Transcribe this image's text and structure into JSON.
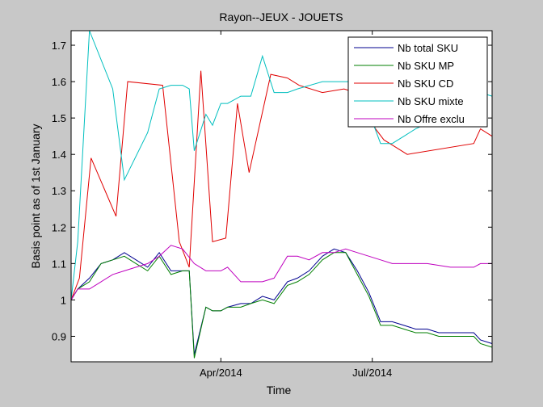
{
  "chart_data": {
    "type": "line",
    "title": "Rayon--JEUX - JOUETS",
    "xlabel": "Time",
    "ylabel": "Basis point as of 1st January",
    "x_axis": {
      "type": "date",
      "range": [
        "2014-01-01",
        "2014-09-11"
      ],
      "ticks": [
        {
          "date": "2014-04-01",
          "label": "Apr/2014"
        },
        {
          "date": "2014-07-01",
          "label": "Jul/2014"
        }
      ]
    },
    "ylim": [
      0.83,
      1.74
    ],
    "yticks": [
      {
        "value": 0.9,
        "label": "0.9"
      },
      {
        "value": 1.0,
        "label": "1"
      },
      {
        "value": 1.1,
        "label": "1.1"
      },
      {
        "value": 1.2,
        "label": "1.2"
      },
      {
        "value": 1.3,
        "label": "1.3"
      },
      {
        "value": 1.4,
        "label": "1.4"
      },
      {
        "value": 1.5,
        "label": "1.5"
      },
      {
        "value": 1.6,
        "label": "1.6"
      },
      {
        "value": 1.7,
        "label": "1.7"
      }
    ],
    "grid": false,
    "legend_position": "top-right",
    "series": [
      {
        "name": "Nb total SKU",
        "color": "#00008f",
        "x": [
          "2014-01-01",
          "2014-01-05",
          "2014-01-12",
          "2014-01-19",
          "2014-01-26",
          "2014-02-02",
          "2014-02-09",
          "2014-02-16",
          "2014-02-23",
          "2014-03-02",
          "2014-03-09",
          "2014-03-13",
          "2014-03-16",
          "2014-03-23",
          "2014-03-27",
          "2014-04-01",
          "2014-04-05",
          "2014-04-13",
          "2014-04-19",
          "2014-04-26",
          "2014-05-03",
          "2014-05-11",
          "2014-05-17",
          "2014-05-24",
          "2014-05-28",
          "2014-06-01",
          "2014-06-08",
          "2014-06-15",
          "2014-06-22",
          "2014-06-29",
          "2014-07-06",
          "2014-07-13",
          "2014-07-20",
          "2014-07-27",
          "2014-08-03",
          "2014-08-10",
          "2014-08-17",
          "2014-08-24",
          "2014-08-31",
          "2014-09-04",
          "2014-09-11"
        ],
        "y": [
          1.0,
          1.03,
          1.06,
          1.1,
          1.11,
          1.13,
          1.11,
          1.09,
          1.13,
          1.08,
          1.08,
          1.08,
          0.85,
          0.98,
          0.97,
          0.97,
          0.98,
          0.99,
          0.99,
          1.01,
          1.0,
          1.05,
          1.06,
          1.08,
          1.1,
          1.12,
          1.14,
          1.13,
          1.08,
          1.02,
          0.94,
          0.94,
          0.93,
          0.92,
          0.92,
          0.91,
          0.91,
          0.91,
          0.91,
          0.89,
          0.88
        ]
      },
      {
        "name": "Nb SKU MP",
        "color": "#007f00",
        "x": [
          "2014-01-01",
          "2014-01-05",
          "2014-01-12",
          "2014-01-19",
          "2014-01-26",
          "2014-02-02",
          "2014-02-09",
          "2014-02-16",
          "2014-02-23",
          "2014-03-02",
          "2014-03-09",
          "2014-03-13",
          "2014-03-16",
          "2014-03-23",
          "2014-03-27",
          "2014-04-01",
          "2014-04-05",
          "2014-04-13",
          "2014-04-19",
          "2014-04-26",
          "2014-05-03",
          "2014-05-11",
          "2014-05-17",
          "2014-05-24",
          "2014-05-28",
          "2014-06-01",
          "2014-06-08",
          "2014-06-15",
          "2014-06-22",
          "2014-06-29",
          "2014-07-06",
          "2014-07-13",
          "2014-07-20",
          "2014-07-27",
          "2014-08-03",
          "2014-08-10",
          "2014-08-17",
          "2014-08-24",
          "2014-08-31",
          "2014-09-04",
          "2014-09-11"
        ],
        "y": [
          1.0,
          1.03,
          1.05,
          1.1,
          1.11,
          1.12,
          1.1,
          1.08,
          1.12,
          1.07,
          1.08,
          1.08,
          0.84,
          0.98,
          0.97,
          0.97,
          0.98,
          0.98,
          0.99,
          1.0,
          0.99,
          1.04,
          1.05,
          1.07,
          1.09,
          1.11,
          1.13,
          1.13,
          1.07,
          1.01,
          0.93,
          0.93,
          0.92,
          0.91,
          0.91,
          0.9,
          0.9,
          0.9,
          0.9,
          0.88,
          0.87
        ]
      },
      {
        "name": "Nb SKU CD",
        "color": "#e00000",
        "x": [
          "2014-01-01",
          "2014-01-06",
          "2014-01-13",
          "2014-01-28",
          "2014-02-04",
          "2014-02-25",
          "2014-03-07",
          "2014-03-13",
          "2014-03-20",
          "2014-03-27",
          "2014-04-04",
          "2014-04-11",
          "2014-04-18",
          "2014-05-01",
          "2014-05-11",
          "2014-05-18",
          "2014-06-01",
          "2014-06-14",
          "2014-06-21",
          "2014-07-03",
          "2014-07-08",
          "2014-07-15",
          "2014-07-22",
          "2014-08-31",
          "2014-09-04",
          "2014-09-11"
        ],
        "y": [
          1.0,
          1.06,
          1.39,
          1.23,
          1.6,
          1.59,
          1.16,
          1.09,
          1.63,
          1.16,
          1.17,
          1.54,
          1.35,
          1.62,
          1.61,
          1.59,
          1.57,
          1.58,
          1.57,
          1.47,
          1.44,
          1.42,
          1.4,
          1.43,
          1.47,
          1.45
        ]
      },
      {
        "name": "Nb SKU mixte",
        "color": "#00bfbf",
        "x": [
          "2014-01-01",
          "2014-01-05",
          "2014-01-12",
          "2014-01-26",
          "2014-02-02",
          "2014-02-16",
          "2014-02-23",
          "2014-03-02",
          "2014-03-09",
          "2014-03-13",
          "2014-03-16",
          "2014-03-23",
          "2014-03-27",
          "2014-04-01",
          "2014-04-05",
          "2014-04-13",
          "2014-04-19",
          "2014-04-26",
          "2014-05-03",
          "2014-05-11",
          "2014-05-17",
          "2014-06-01",
          "2014-06-22",
          "2014-07-06",
          "2014-07-13",
          "2014-07-20",
          "2014-07-27",
          "2014-08-10",
          "2014-08-24",
          "2014-09-04",
          "2014-09-11"
        ],
        "y": [
          1.0,
          1.16,
          1.74,
          1.58,
          1.33,
          1.46,
          1.58,
          1.59,
          1.59,
          1.58,
          1.41,
          1.51,
          1.48,
          1.54,
          1.54,
          1.56,
          1.56,
          1.67,
          1.57,
          1.57,
          1.58,
          1.6,
          1.6,
          1.43,
          1.43,
          1.45,
          1.47,
          1.5,
          1.53,
          1.57,
          1.56
        ]
      },
      {
        "name": "Nb Offre exclu",
        "color": "#bf00bf",
        "x": [
          "2014-01-01",
          "2014-01-05",
          "2014-01-12",
          "2014-01-19",
          "2014-01-26",
          "2014-02-02",
          "2014-02-16",
          "2014-02-23",
          "2014-03-02",
          "2014-03-09",
          "2014-03-16",
          "2014-03-23",
          "2014-03-27",
          "2014-04-01",
          "2014-04-05",
          "2014-04-13",
          "2014-04-19",
          "2014-04-26",
          "2014-05-03",
          "2014-05-11",
          "2014-05-17",
          "2014-05-24",
          "2014-06-01",
          "2014-06-08",
          "2014-06-15",
          "2014-06-22",
          "2014-06-29",
          "2014-07-06",
          "2014-07-13",
          "2014-07-20",
          "2014-08-03",
          "2014-08-17",
          "2014-08-31",
          "2014-09-04",
          "2014-09-11"
        ],
        "y": [
          1.0,
          1.03,
          1.03,
          1.05,
          1.07,
          1.08,
          1.1,
          1.12,
          1.15,
          1.14,
          1.1,
          1.08,
          1.08,
          1.08,
          1.09,
          1.05,
          1.05,
          1.05,
          1.06,
          1.12,
          1.12,
          1.11,
          1.13,
          1.13,
          1.14,
          1.13,
          1.12,
          1.11,
          1.1,
          1.1,
          1.1,
          1.09,
          1.09,
          1.1,
          1.1
        ]
      }
    ]
  }
}
